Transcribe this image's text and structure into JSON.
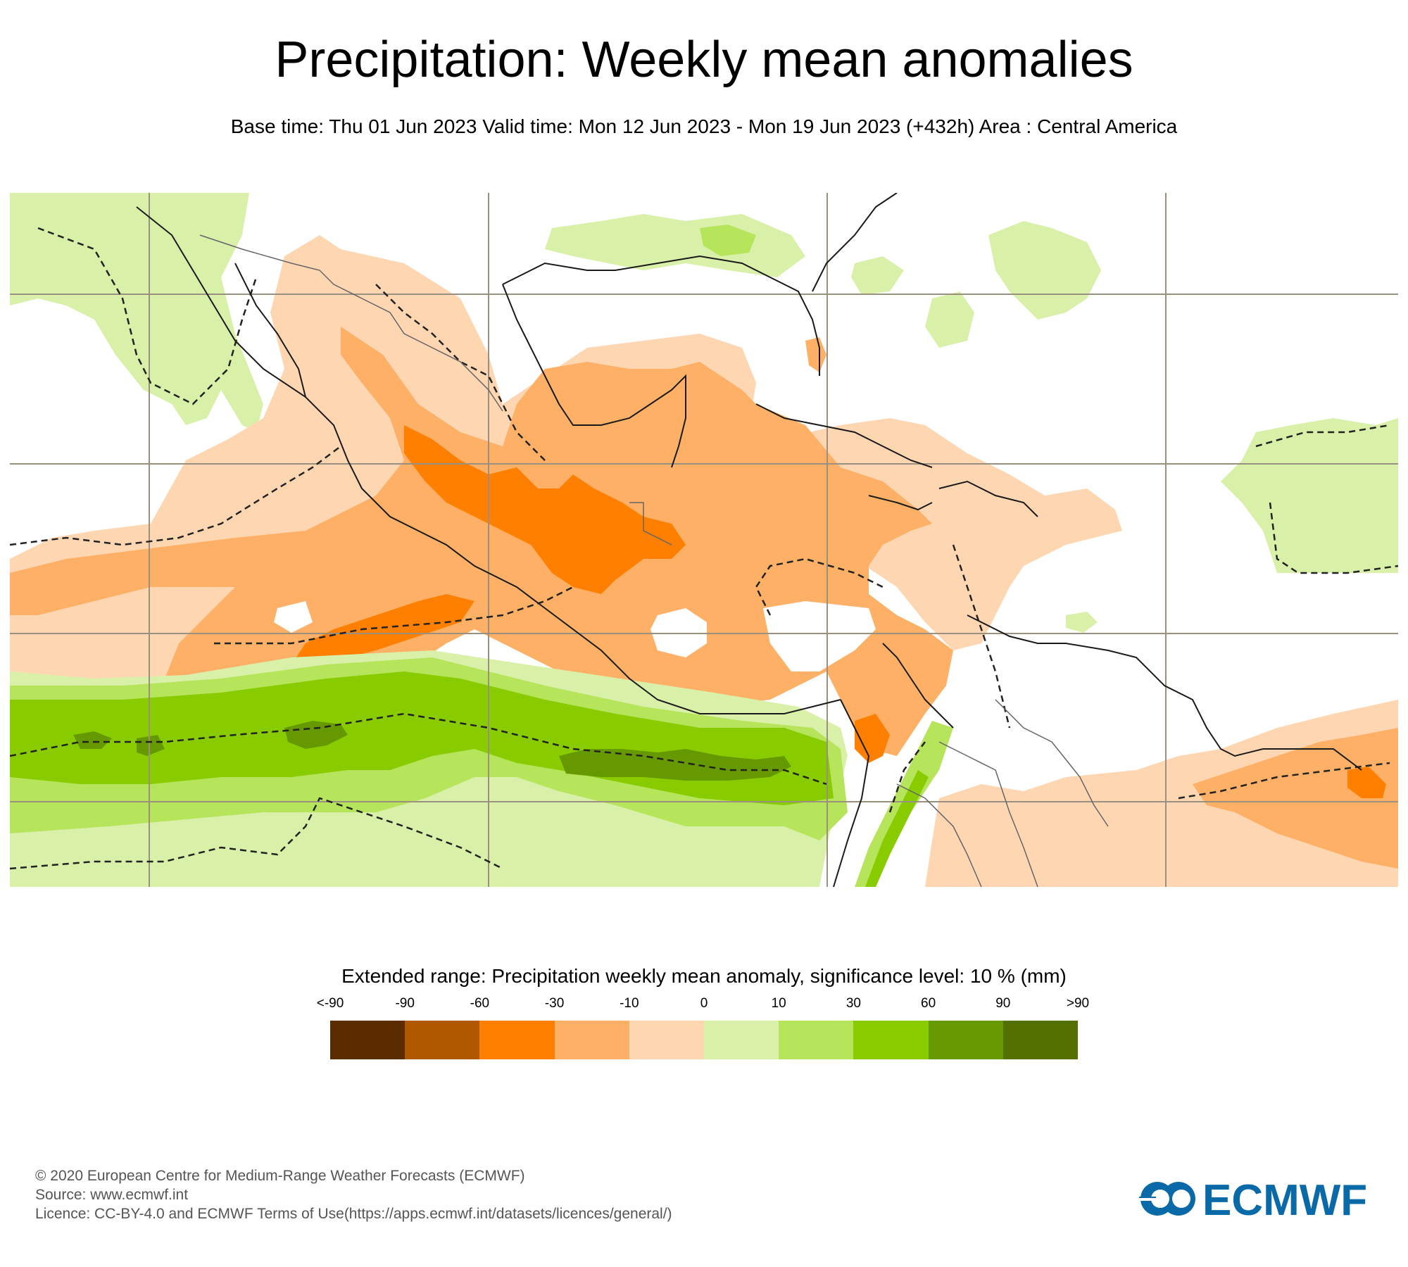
{
  "header": {
    "title": "Precipitation: Weekly mean anomalies",
    "subtitle": "Base time: Thu 01 Jun 2023 Valid time: Mon 12 Jun 2023 - Mon 19 Jun 2023 (+432h) Area : Central America"
  },
  "map": {
    "area": "Central America",
    "colors": {
      "anomaly_-60_-30": "#ff7f00",
      "anomaly_-30_-10": "#fdb066",
      "anomaly_-10_0": "#fed6b2",
      "anomaly_0_10": "#d9f0a8",
      "anomaly_10_30": "#b6e45a",
      "anomaly_30_60": "#88cc00",
      "anomaly_60_90": "#669900",
      "coastline": "#1a1a1a",
      "border": "#666666",
      "gridline": "#9a9080",
      "significance_contour": "#222222"
    }
  },
  "legend": {
    "title": "Extended range: Precipitation weekly mean anomaly, significance level: 10 % (mm)",
    "ticks": [
      "<-90",
      "-90",
      "-60",
      "-30",
      "-10",
      "0",
      "10",
      "30",
      "60",
      "90",
      ">90"
    ],
    "colors": [
      "#5b2c00",
      "#b05800",
      "#ff7f00",
      "#fdb066",
      "#fed6b2",
      "#d9f0a8",
      "#b6e45a",
      "#88cc00",
      "#669900",
      "#537000"
    ]
  },
  "footer": {
    "copyright": "© 2020 European Centre for Medium-Range Weather Forecasts (ECMWF)",
    "source": "Source: www.ecmwf.int",
    "licence": "Licence: CC-BY-4.0 and ECMWF Terms of Use(https://apps.ecmwf.int/datasets/licences/general/)"
  },
  "logo": {
    "text": "ECMWF",
    "color": "#0a6aa8"
  }
}
